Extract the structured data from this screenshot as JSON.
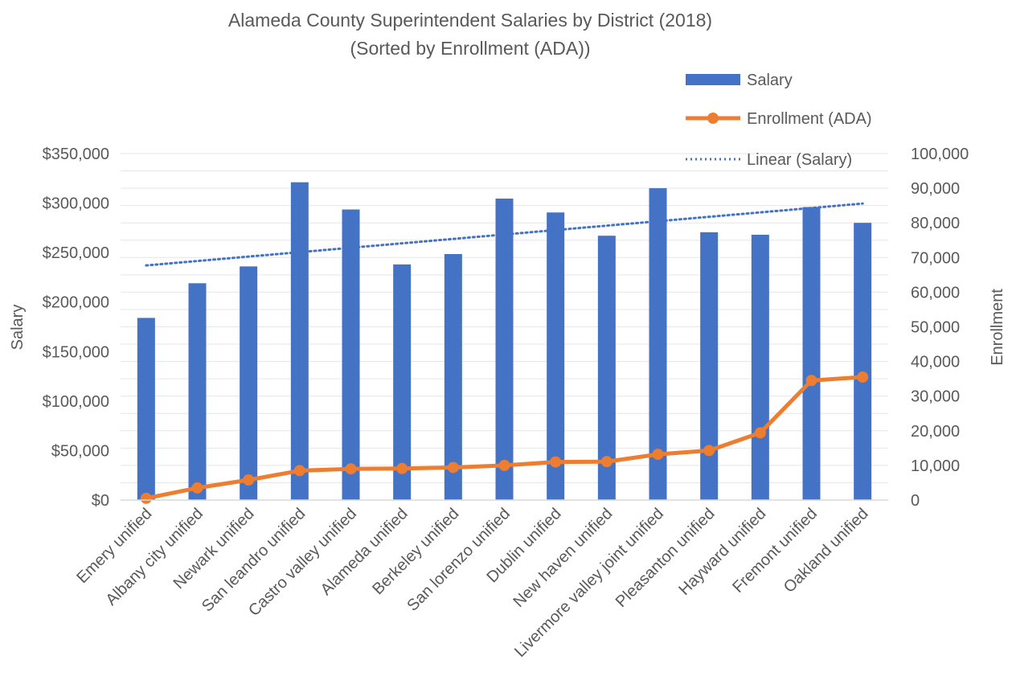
{
  "chart_data": {
    "type": "bar",
    "title": "Alameda County Superintendent Salaries by District (2018)",
    "subtitle": "(Sorted by Enrollment (ADA))",
    "ylabel": "Salary",
    "y2label": "Enrollment",
    "categories": [
      "Emery unified",
      "Albany city unified",
      "Newark unified",
      "San leandro unified",
      "Castro valley unified",
      "Alameda unified",
      "Berkeley unified",
      "San lorenzo unified",
      "Dublin unified",
      "New haven unified",
      "Livermore valley joint unified",
      "Pleasanton unified",
      "Hayward unified",
      "Fremont unified",
      "Oakland unified"
    ],
    "series": [
      {
        "name": "Salary",
        "kind": "bar",
        "axis": "left",
        "color": "#4472C4",
        "values": [
          184000,
          219000,
          236000,
          321000,
          293500,
          238000,
          248500,
          304500,
          290500,
          267000,
          315000,
          270500,
          268000,
          296000,
          280000
        ]
      },
      {
        "name": "Enrollment (ADA)",
        "kind": "line",
        "axis": "right",
        "color": "#ED7D31",
        "values": [
          500,
          3500,
          5800,
          8500,
          9000,
          9100,
          9400,
          10000,
          11000,
          11100,
          13200,
          14300,
          19400,
          34500,
          35500
        ]
      },
      {
        "name": "Linear (Salary)",
        "kind": "trendline",
        "axis": "left",
        "color": "#4472C4",
        "start": 237000,
        "end": 299500
      }
    ],
    "yaxis_left": {
      "min": 0,
      "max": 350000,
      "tick_values": [
        0,
        50000,
        100000,
        150000,
        200000,
        250000,
        300000,
        350000
      ],
      "tick_labels": [
        "$0",
        "$50,000",
        "$100,000",
        "$150,000",
        "$200,000",
        "$250,000",
        "$300,000",
        "$350,000"
      ]
    },
    "yaxis_right": {
      "min": 0,
      "max": 100000,
      "tick_values": [
        0,
        10000,
        20000,
        30000,
        40000,
        50000,
        60000,
        70000,
        80000,
        90000,
        100000
      ],
      "tick_labels": [
        "0",
        "10,000",
        "20,000",
        "30,000",
        "40,000",
        "50,000",
        "60,000",
        "70,000",
        "80,000",
        "90,000",
        "100,000"
      ]
    },
    "grid": true,
    "legend_position": "top-right"
  }
}
